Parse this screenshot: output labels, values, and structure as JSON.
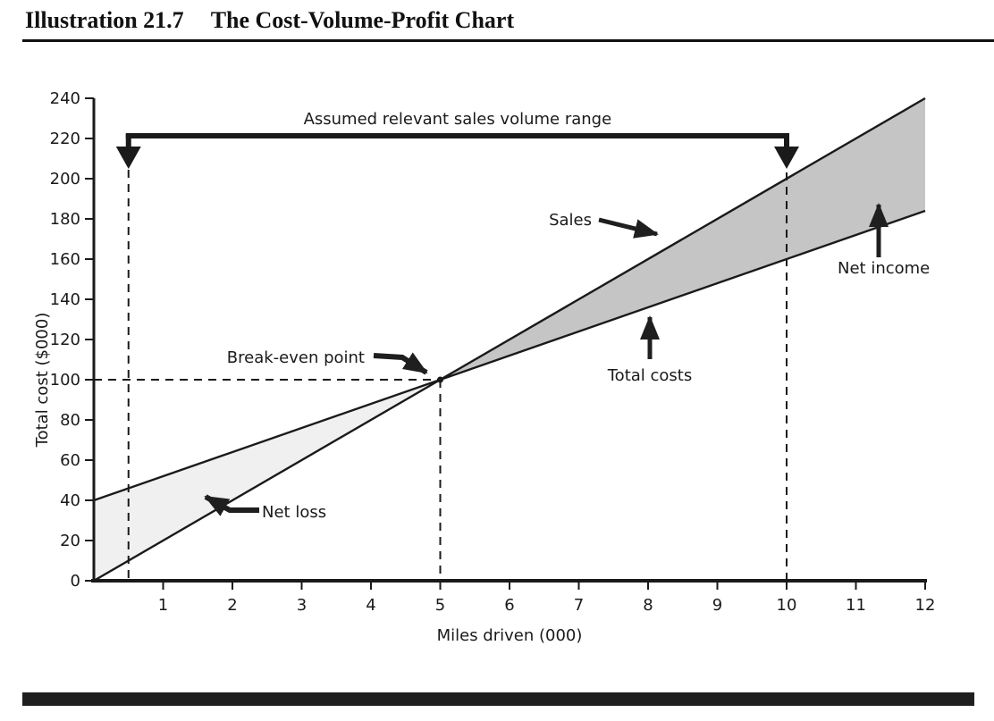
{
  "header": {
    "label": "Illustration 21.7",
    "title": "The Cost-Volume-Profit Chart"
  },
  "page": {
    "footer_bar_color": "#1f1f1f",
    "rule_color": "#111111"
  },
  "chart_data": {
    "type": "line",
    "title": "",
    "xlabel": "Miles driven (000)",
    "ylabel": "Total cost ($000)",
    "xlim": [
      0,
      12
    ],
    "ylim": [
      0,
      240
    ],
    "x_ticks": [
      1,
      2,
      3,
      4,
      5,
      6,
      7,
      8,
      9,
      10,
      11,
      12
    ],
    "y_ticks": [
      0,
      20,
      40,
      60,
      80,
      100,
      120,
      140,
      160,
      180,
      200,
      220,
      240
    ],
    "grid": false,
    "legend": "none",
    "line_color": "#1a1a1a",
    "series": [
      {
        "name": "Sales",
        "x": [
          0,
          12
        ],
        "y": [
          0,
          240
        ]
      },
      {
        "name": "Total costs",
        "x": [
          0,
          12
        ],
        "y": [
          40,
          184
        ]
      }
    ],
    "break_even": {
      "x": 5,
      "y": 100
    },
    "relevant_range": {
      "x_start": 0.5,
      "x_end": 10
    },
    "regions": [
      {
        "name": "Net loss",
        "x_range": [
          0,
          5
        ],
        "between": "total costs above sales",
        "color": "#f0f0f0"
      },
      {
        "name": "Net income",
        "x_range": [
          5,
          12
        ],
        "between": "sales above total costs",
        "color": "#c5c5c5"
      }
    ],
    "annotations": {
      "range": "Assumed relevant sales volume range",
      "sales": "Sales",
      "net_income": "Net income",
      "total_costs": "Total costs",
      "break_even": "Break-even point",
      "net_loss": "Net loss"
    }
  }
}
